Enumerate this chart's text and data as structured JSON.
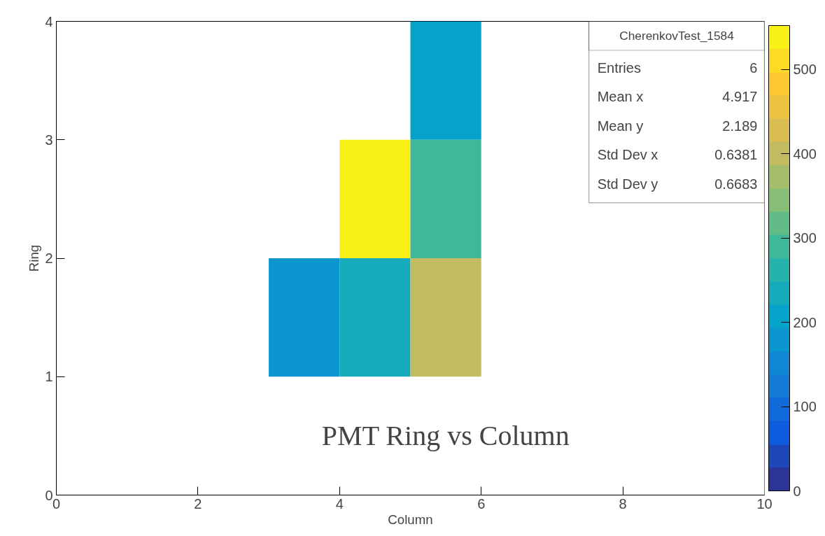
{
  "chart_data": {
    "type": "heatmap",
    "title": "PMT Ring vs Column",
    "xlabel": "Column",
    "ylabel": "Ring",
    "x": [
      0.5,
      1.5,
      2.5,
      3.5,
      4.5,
      5.5,
      6.5,
      7.5,
      8.5,
      9.5
    ],
    "y": [
      3.5,
      2.5,
      1.5
    ],
    "cells": [
      [
        null,
        null,
        null,
        null,
        null,
        210,
        null,
        null,
        null,
        null
      ],
      [
        null,
        null,
        null,
        null,
        545,
        290,
        null,
        null,
        null,
        null
      ],
      [
        null,
        null,
        null,
        170,
        240,
        410,
        null,
        null,
        null,
        null
      ]
    ],
    "xlim": [
      0,
      10
    ],
    "xticks": [
      0,
      2,
      4,
      6,
      8,
      10
    ],
    "ylim": [
      0,
      4
    ],
    "yticks": [
      0,
      1,
      2,
      3,
      4
    ],
    "clim": [
      0,
      552
    ],
    "cticks": [
      0,
      100,
      200,
      300,
      400,
      500
    ],
    "annotations": [
      "CherenkovTest_1584",
      "Entries 6",
      "Mean x 4.917",
      "Mean y 2.189",
      "Std Dev x 0.6381",
      "Std Dev y 0.6683"
    ],
    "grid": false
  }
}
